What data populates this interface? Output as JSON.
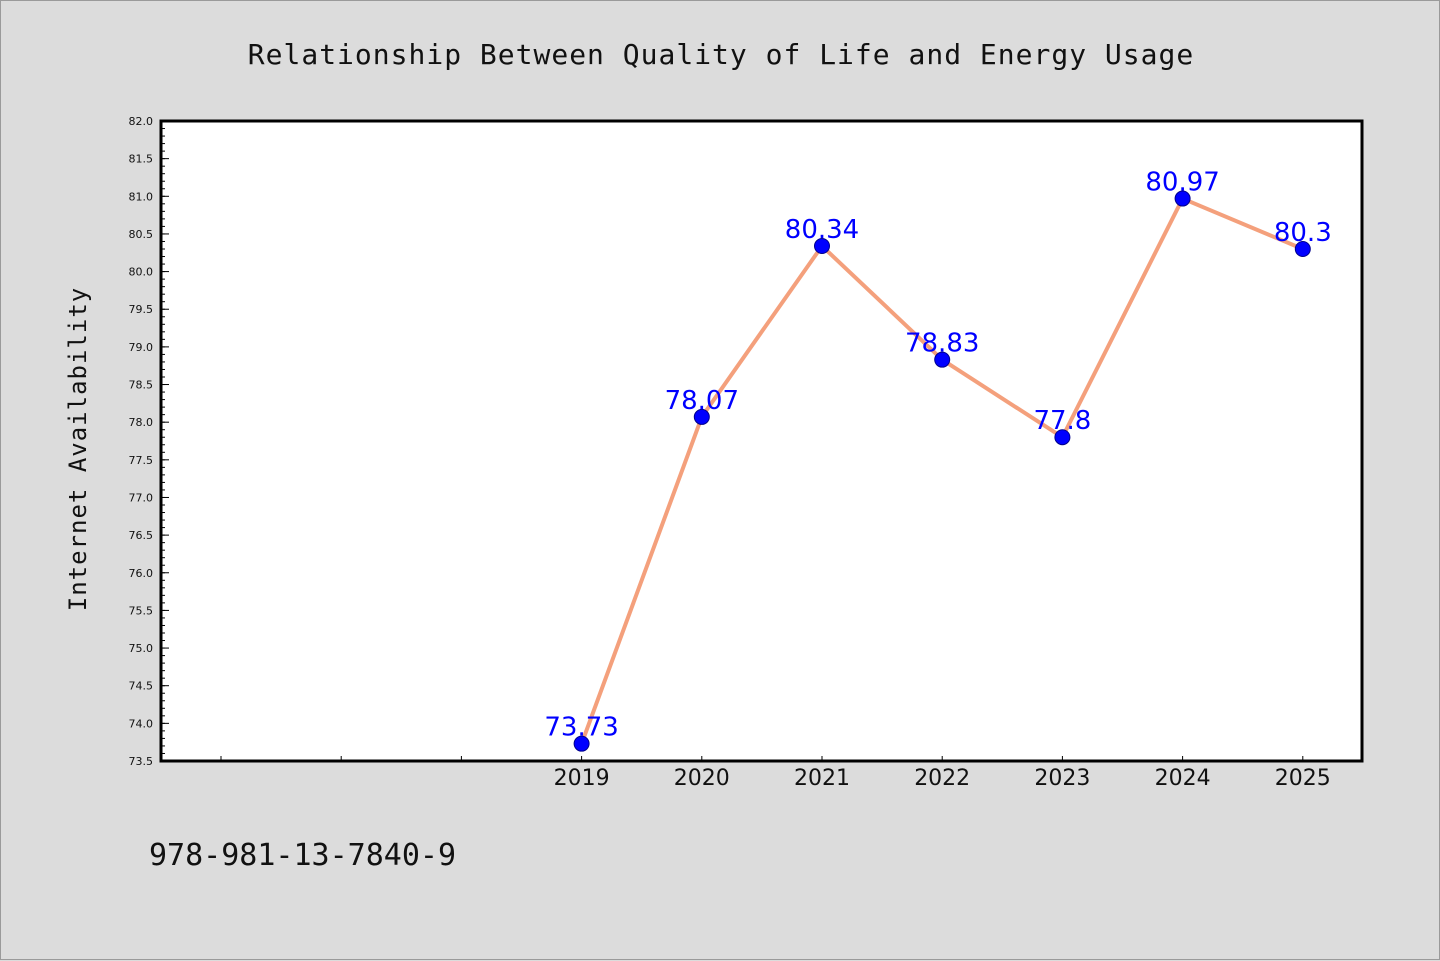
{
  "chart_data": {
    "type": "line",
    "title": "Relationship Between Quality of Life and Energy Usage",
    "xlabel": "",
    "ylabel": "Internet Availability",
    "categories": [
      "2019",
      "2020",
      "2021",
      "2022",
      "2023",
      "2024",
      "2025"
    ],
    "series": [
      {
        "values": [
          73.73,
          78.07,
          80.34,
          78.83,
          77.8,
          80.97,
          80.3
        ]
      }
    ],
    "data_labels": [
      "73.73",
      "78.07",
      "80.34",
      "78.83",
      "77.8",
      "80.97",
      "80.3"
    ],
    "ylim": [
      73.5,
      82.0
    ],
    "yticks": [
      "73.5",
      "74.0",
      "74.5",
      "75.0",
      "75.5",
      "76.0",
      "76.5",
      "77.0",
      "77.5",
      "78.0",
      "78.5",
      "79.0",
      "79.5",
      "80.0",
      "80.5",
      "81.0",
      "81.5",
      "82.0"
    ],
    "grid": false,
    "legend": "none",
    "colors": {
      "line": "#f4a07c",
      "marker": "#0000ff",
      "label": "#0000ff",
      "background": "#dcdcdc",
      "plot_area": "#ffffff"
    }
  },
  "footer": {
    "isbn": "978-981-13-7840-9"
  }
}
